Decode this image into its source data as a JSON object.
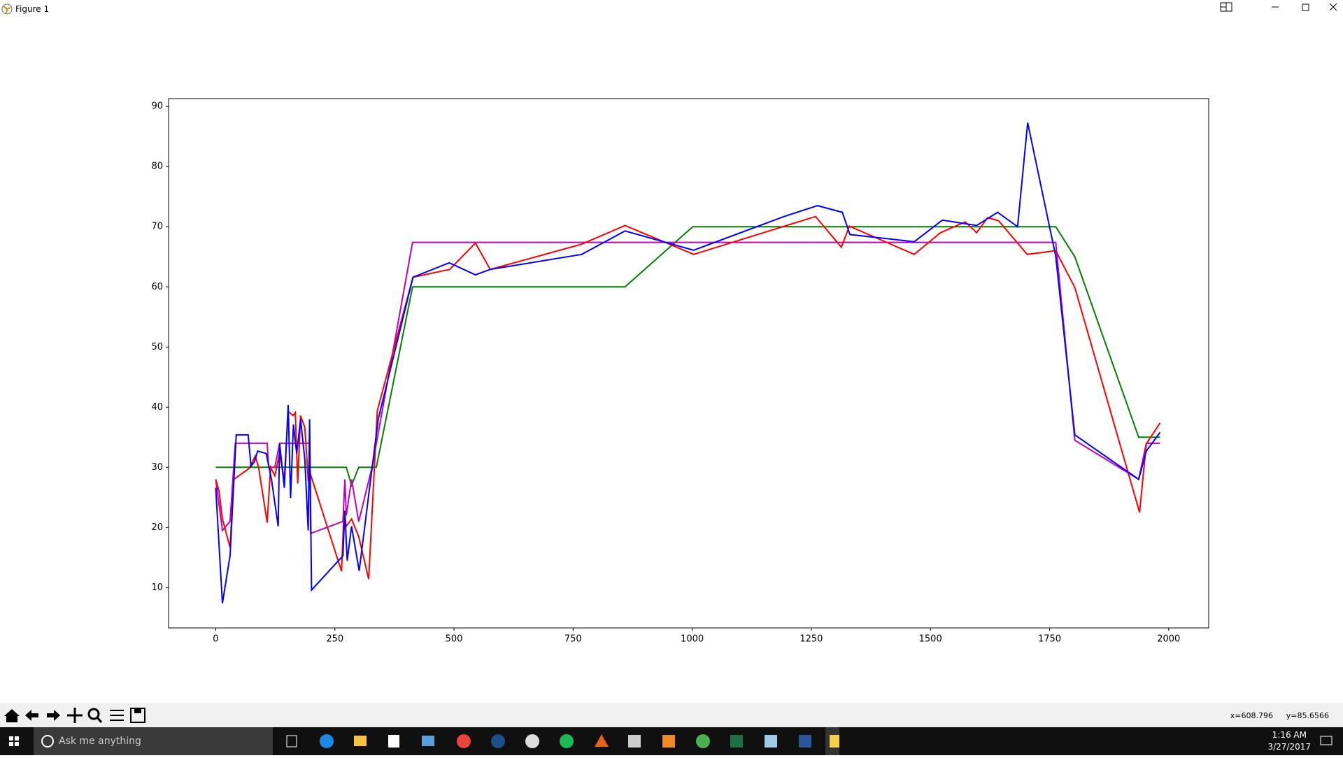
{
  "window": {
    "title": "Figure 1"
  },
  "chart_data": {
    "type": "line",
    "xlim": [
      -99,
      2084
    ],
    "ylim": [
      3.3,
      91.3
    ],
    "xticks": [
      0,
      250,
      500,
      750,
      1000,
      1250,
      1500,
      1750,
      2000
    ],
    "yticks": [
      10,
      20,
      30,
      40,
      50,
      60,
      70,
      80,
      90
    ],
    "grid": false,
    "series": [
      {
        "color": "#008000",
        "x": [
          0,
          274,
          285,
          300,
          337,
          413,
          859,
          1001,
          1763,
          1803,
          1937,
          1982
        ],
        "values": [
          30,
          30,
          27,
          30,
          30,
          60,
          60,
          70,
          70,
          65,
          35,
          35
        ]
      },
      {
        "color": "#bf00bf",
        "x": [
          0,
          14,
          30,
          41,
          108,
          111,
          124,
          134,
          197,
          199,
          267,
          271,
          274,
          285,
          300,
          328,
          413,
          1763,
          1803,
          1937,
          1953,
          1982
        ],
        "values": [
          28,
          19.5,
          21,
          34,
          34,
          30,
          30,
          34,
          34,
          19,
          21,
          28,
          22,
          28,
          21,
          30,
          67.4,
          67.4,
          34.5,
          28,
          34,
          34
        ]
      },
      {
        "color": "#ff0000",
        "x": [
          0,
          7,
          14,
          30,
          38,
          70,
          83,
          90,
          108,
          115,
          124,
          134,
          144,
          152,
          162,
          167,
          172,
          178,
          187,
          194,
          199,
          264,
          269,
          274,
          285,
          300,
          321,
          339,
          414,
          491,
          545,
          576,
          768,
          859,
          1003,
          1259,
          1313,
          1330,
          1466,
          1521,
          1573,
          1597,
          1620,
          1643,
          1703,
          1763,
          1803,
          1939,
          1953,
          1982
        ],
        "values": [
          28,
          26,
          21.4,
          16.7,
          28,
          29.8,
          31.9,
          30,
          20.8,
          30,
          28.6,
          32.3,
          28,
          39.3,
          38.6,
          39.1,
          27.3,
          38.6,
          36.6,
          28,
          28.8,
          12.7,
          22.6,
          20.2,
          21.4,
          18.5,
          11.4,
          39.4,
          61.6,
          62.9,
          67.3,
          62.9,
          67.1,
          70.2,
          65.4,
          71.7,
          66.6,
          70.1,
          65.4,
          69,
          70.8,
          69,
          71.5,
          71,
          65.4,
          66,
          59.9,
          22.5,
          33.9,
          37.4
        ]
      },
      {
        "color": "#0000ff",
        "x": [
          0,
          14,
          30,
          43,
          68,
          74,
          81,
          88,
          106,
          117,
          131,
          134,
          144,
          152,
          157,
          163,
          170,
          178,
          187,
          194,
          197,
          201,
          267,
          271,
          276,
          285,
          301,
          341,
          414,
          490,
          545,
          576,
          768,
          859,
          1003,
          1193,
          1263,
          1315,
          1331,
          1466,
          1525,
          1597,
          1641,
          1683,
          1704,
          1763,
          1803,
          1937,
          1953,
          1982
        ],
        "values": [
          26.6,
          7.4,
          15.3,
          35.4,
          35.4,
          30.2,
          30.9,
          32.7,
          32.3,
          28,
          20.2,
          34,
          26.6,
          40.4,
          24.9,
          37.1,
          32.3,
          38,
          31.3,
          19.5,
          38,
          9.6,
          15.3,
          22.8,
          14.5,
          20.2,
          12.8,
          38,
          61.6,
          64,
          62,
          62.9,
          65.4,
          69.3,
          66.1,
          71.7,
          73.5,
          72.4,
          68.7,
          67.5,
          71.1,
          70.2,
          72.4,
          70,
          87.3,
          65.1,
          35.4,
          28,
          32.7,
          35.8
        ]
      }
    ]
  },
  "status": {
    "x": "x=608.796",
    "y": "y=85.6566"
  },
  "taskbar": {
    "search": "Ask me anything",
    "time": "1:16 AM",
    "date": "3/27/2017"
  }
}
